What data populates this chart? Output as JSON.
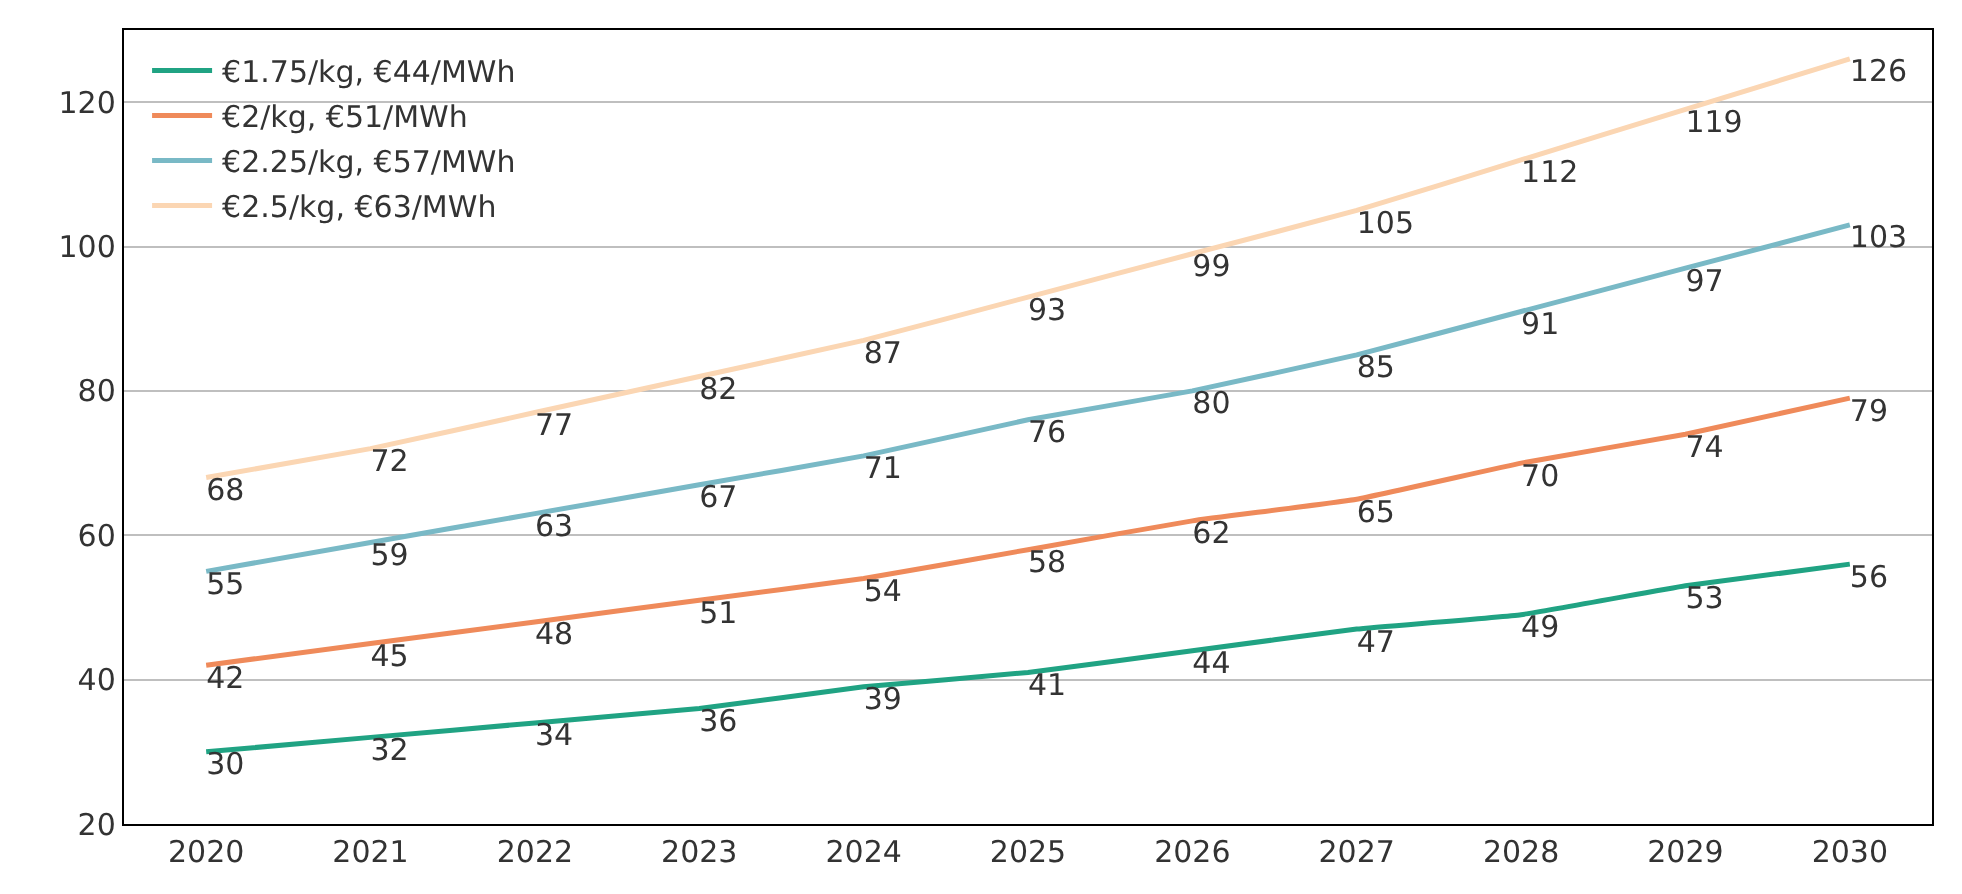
{
  "chart_data": {
    "type": "line",
    "x": [
      2020,
      2021,
      2022,
      2023,
      2024,
      2025,
      2026,
      2027,
      2028,
      2029,
      2030
    ],
    "series": [
      {
        "name": "€1.75/kg, €44/MWh",
        "color": "#20a383",
        "values": [
          30,
          32,
          34,
          36,
          39,
          41,
          44,
          47,
          49,
          53,
          56
        ]
      },
      {
        "name": "€2/kg, €51/MWh",
        "color": "#ef8a5a",
        "values": [
          42,
          45,
          48,
          51,
          54,
          58,
          62,
          65,
          70,
          74,
          79
        ]
      },
      {
        "name": "€2.25/kg, €57/MWh",
        "color": "#79b9c6",
        "values": [
          55,
          59,
          63,
          67,
          71,
          76,
          80,
          85,
          91,
          97,
          103
        ]
      },
      {
        "name": "€2.5/kg, €63/MWh",
        "color": "#fbd6b3",
        "values": [
          68,
          72,
          77,
          82,
          87,
          93,
          99,
          105,
          112,
          119,
          126
        ]
      }
    ],
    "xlim": [
      2019.5,
      2030.5
    ],
    "xticks": [
      2020,
      2021,
      2022,
      2023,
      2024,
      2025,
      2026,
      2027,
      2028,
      2029,
      2030
    ],
    "ylim": [
      20,
      130
    ],
    "yticks": [
      20,
      40,
      60,
      80,
      100,
      120
    ],
    "grid": "y",
    "legend": "top left",
    "data_labels": true,
    "marker": "none",
    "line_style": "solid"
  }
}
